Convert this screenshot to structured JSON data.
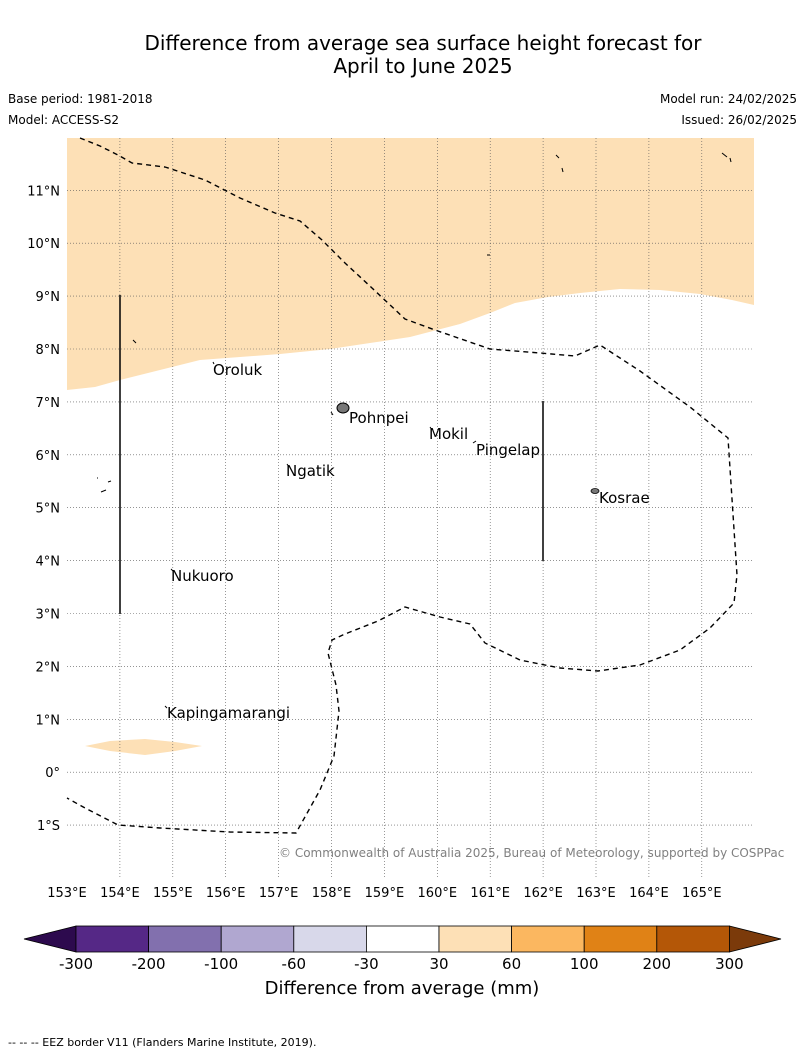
{
  "title": {
    "line1": "Difference from average sea surface height forecast for",
    "line2": "April to June 2025"
  },
  "meta": {
    "base_period": "Base period: 1981-2018",
    "model": "Model: ACCESS-S2",
    "model_run": "Model run: 24/02/2025",
    "issued": "Issued: 26/02/2025"
  },
  "map": {
    "lon_range": [
      153,
      166
    ],
    "lat_range": [
      -2,
      12
    ],
    "lon_ticks": [
      "153°E",
      "154°E",
      "155°E",
      "156°E",
      "157°E",
      "158°E",
      "159°E",
      "160°E",
      "161°E",
      "162°E",
      "163°E",
      "164°E",
      "165°E"
    ],
    "lat_ticks": [
      "1°S",
      "0°",
      "1°N",
      "2°N",
      "3°N",
      "4°N",
      "5°N",
      "6°N",
      "7°N",
      "8°N",
      "9°N",
      "10°N",
      "11°N"
    ],
    "grid": "dotted",
    "places": [
      "Oroluk",
      "Pohnpei",
      "Mokil",
      "Pingelap",
      "Ngatik",
      "Kosrae",
      "Nukuoro",
      "Kapingamarangi"
    ],
    "copyright": "© Commonwealth of Australia 2025, Bureau of Meteorology, supported by COSPPac"
  },
  "colorbar": {
    "tick_labels": [
      "-300",
      "-200",
      "-100",
      "-60",
      "-30",
      "30",
      "60",
      "100",
      "200",
      "300"
    ],
    "colors": [
      "#552886",
      "#8270ae",
      "#b0a7d0",
      "#d8d8ea",
      "#ffffff",
      "#fde0b6",
      "#fbb760",
      "#e08216",
      "#b45707"
    ],
    "end_low": "#2d0a4e",
    "end_high": "#7b3a0a",
    "title": "Difference from average (mm)"
  },
  "footnote": "--  --  -- EEZ border V11 (Flanders Marine Institute, 2019)."
}
